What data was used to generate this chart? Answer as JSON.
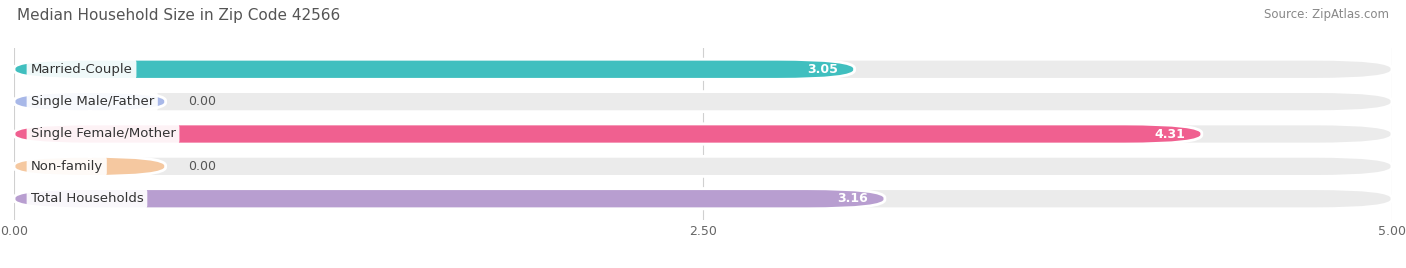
{
  "title": "Median Household Size in Zip Code 42566",
  "source": "Source: ZipAtlas.com",
  "categories": [
    "Married-Couple",
    "Single Male/Father",
    "Single Female/Mother",
    "Non-family",
    "Total Households"
  ],
  "values": [
    3.05,
    0.0,
    4.31,
    0.0,
    3.16
  ],
  "bar_colors": [
    "#40bfbf",
    "#a8b8e8",
    "#f06090",
    "#f5c8a0",
    "#b89ed0"
  ],
  "zero_bar_width": 0.55,
  "xlim": [
    0,
    5.0
  ],
  "xticks": [
    0.0,
    2.5,
    5.0
  ],
  "xticklabels": [
    "0.00",
    "2.50",
    "5.00"
  ],
  "background_color": "#ffffff",
  "bar_bg_color": "#ebebeb",
  "title_color": "#555555",
  "title_fontsize": 11,
  "source_fontsize": 8.5,
  "label_fontsize": 9.5,
  "value_fontsize": 9,
  "bar_height": 0.62
}
